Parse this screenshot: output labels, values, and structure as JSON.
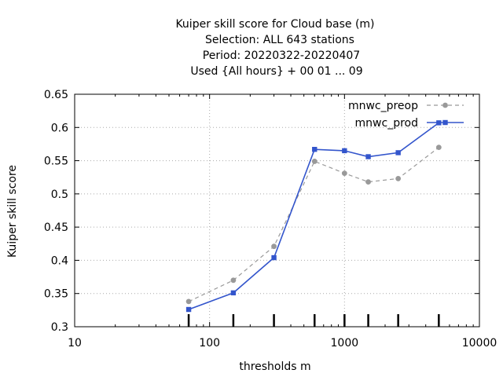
{
  "chart_data": {
    "type": "line",
    "title_lines": [
      "Kuiper skill score  for Cloud base (m)",
      "Selection: ALL    643 stations",
      "Period: 20220322-20220407",
      "Used {All hours} + 00 01 ... 09"
    ],
    "xlabel": "thresholds m",
    "ylabel": "Kuiper skill score",
    "x_scale": "log",
    "xlim": [
      10,
      10000
    ],
    "ylim": [
      0.3,
      0.65
    ],
    "x_ticks": [
      10,
      100,
      1000,
      10000
    ],
    "x_tick_labels": [
      "10",
      "100",
      "1000",
      "10000"
    ],
    "y_ticks": [
      0.3,
      0.35,
      0.4,
      0.45,
      0.5,
      0.55,
      0.6,
      0.65
    ],
    "y_tick_labels": [
      "0.3",
      "0.35",
      "0.4",
      "0.45",
      "0.5",
      "0.55",
      "0.6",
      "0.65"
    ],
    "grid": true,
    "legend_position": "top-right",
    "threshold_marks": [
      70,
      150,
      300,
      600,
      1000,
      1500,
      2500,
      5000
    ],
    "series": [
      {
        "name": "mnwc_preop",
        "color": "#999999",
        "style": "dashed",
        "x": [
          70,
          150,
          300,
          600,
          1000,
          1500,
          2500,
          5000
        ],
        "y": [
          0.338,
          0.37,
          0.421,
          0.549,
          0.531,
          0.518,
          0.523,
          0.57
        ]
      },
      {
        "name": "mnwc_prod",
        "color": "#3355cc",
        "style": "solid",
        "x": [
          70,
          150,
          300,
          600,
          1000,
          1500,
          2500,
          5000
        ],
        "y": [
          0.326,
          0.351,
          0.404,
          0.567,
          0.565,
          0.556,
          0.562,
          0.607
        ]
      }
    ]
  }
}
